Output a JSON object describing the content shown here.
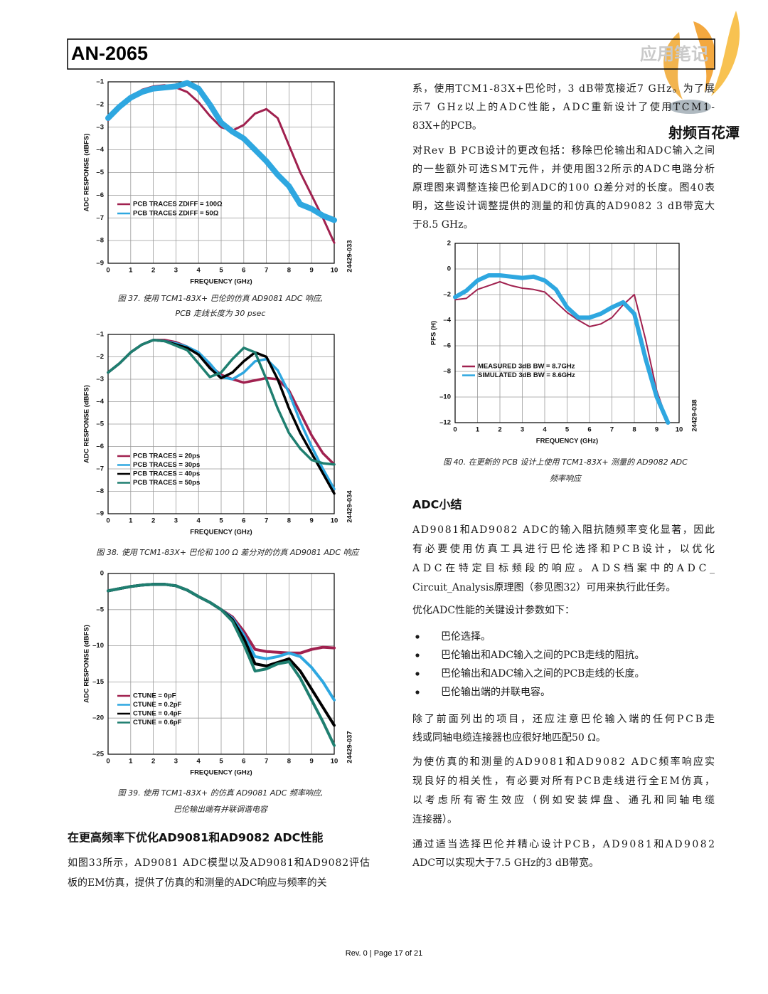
{
  "header": {
    "title": "AN-2065",
    "watermark": "应用笔记",
    "logo": "射频百花潭"
  },
  "chart_data": [
    {
      "type": "line",
      "xlabel": "FREQUENCY (GHz)",
      "ylabel": "ADC RESPONSE (dBFS)",
      "code": "24429-033",
      "caption": [
        "图 37.  使用 TCM1-83X+ 巴伦的仿真 AD9081 ADC 响应,",
        "PCB 走线长度为 30 psec"
      ],
      "x": [
        0,
        0.5,
        1,
        1.5,
        2,
        2.5,
        3,
        3.5,
        4,
        4.5,
        5,
        5.5,
        6,
        6.5,
        7,
        7.5,
        8,
        8.5,
        9,
        9.5,
        10
      ],
      "xlim": [
        0,
        10
      ],
      "xticks": [
        0,
        1,
        2,
        3,
        4,
        5,
        6,
        7,
        8,
        9,
        10
      ],
      "ylim": [
        -9,
        -1
      ],
      "yticks": [
        {
          "value": -1,
          "label": "–1"
        },
        {
          "value": -2,
          "label": "–2"
        },
        {
          "value": -3,
          "label": "–3"
        },
        {
          "value": -4,
          "label": "–4"
        },
        {
          "value": -5,
          "label": "–5"
        },
        {
          "value": -6,
          "label": "–6"
        },
        {
          "value": -7,
          "label": "–7"
        },
        {
          "value": -8,
          "label": "–8"
        },
        {
          "value": -9,
          "label": "–9"
        }
      ],
      "grid": true,
      "series": [
        {
          "name": "PCB TRACES ZDIFF = 100Ω",
          "color": "#a0214f",
          "width": 3,
          "values": [
            -2.7,
            -2.2,
            -1.7,
            -1.35,
            -1.2,
            -1.15,
            -1.25,
            -1.45,
            -1.9,
            -2.5,
            -3.0,
            -3.15,
            -2.9,
            -2.4,
            -2.2,
            -2.6,
            -3.8,
            -5.0,
            -6.0,
            -7.0,
            -8.1
          ]
        },
        {
          "name": "PCB TRACES ZDIFF = 50Ω",
          "color": "#2ea7e0",
          "width": 8,
          "values": [
            -2.6,
            -2.1,
            -1.7,
            -1.45,
            -1.3,
            -1.25,
            -1.2,
            -1.05,
            -1.3,
            -2.0,
            -2.8,
            -3.2,
            -3.5,
            -4.0,
            -4.5,
            -5.1,
            -5.6,
            -6.4,
            -6.6,
            -6.9,
            -7.1
          ]
        }
      ]
    },
    {
      "type": "line",
      "xlabel": "FREQUENCY (GHz)",
      "ylabel": "ADC RESPONSE (dBFS)",
      "code": "24429-034",
      "caption": [
        "图 38.  使用 TCM1-83X+ 巴伦和 100 Ω 差分对的仿真 AD9081 ADC 响应"
      ],
      "x": [
        0,
        0.5,
        1,
        1.5,
        2,
        2.5,
        3,
        3.5,
        4,
        4.5,
        5,
        5.5,
        6,
        6.5,
        7,
        7.5,
        8,
        8.5,
        9,
        9.5,
        10
      ],
      "xlim": [
        0,
        10
      ],
      "xticks": [
        0,
        1,
        2,
        3,
        4,
        5,
        6,
        7,
        8,
        9,
        10
      ],
      "ylim": [
        -9,
        -1
      ],
      "yticks": [
        {
          "value": -1,
          "label": "–1"
        },
        {
          "value": -2,
          "label": "–2"
        },
        {
          "value": -3,
          "label": "–3"
        },
        {
          "value": -4,
          "label": "–4"
        },
        {
          "value": -5,
          "label": "–5"
        },
        {
          "value": -6,
          "label": "–6"
        },
        {
          "value": -7,
          "label": "–7"
        },
        {
          "value": -8,
          "label": "–8"
        },
        {
          "value": -9,
          "label": "–9"
        }
      ],
      "grid": true,
      "series": [
        {
          "name": "PCB TRACES = 20ps",
          "color": "#a0214f",
          "width": 3.5,
          "values": [
            -2.7,
            -2.3,
            -1.8,
            -1.45,
            -1.25,
            -1.25,
            -1.35,
            -1.55,
            -1.9,
            -2.4,
            -2.8,
            -3.0,
            -3.15,
            -3.05,
            -2.95,
            -3.0,
            -3.5,
            -4.5,
            -5.5,
            -6.3,
            -6.8
          ]
        },
        {
          "name": "PCB TRACES = 30ps",
          "color": "#2ea7e0",
          "width": 3.5,
          "values": [
            -2.7,
            -2.3,
            -1.8,
            -1.45,
            -1.25,
            -1.3,
            -1.4,
            -1.55,
            -1.8,
            -2.3,
            -2.9,
            -3.0,
            -2.7,
            -2.2,
            -2.1,
            -2.6,
            -3.6,
            -4.9,
            -6.0,
            -7.0,
            -7.9
          ]
        },
        {
          "name": "PCB TRACES = 40ps",
          "color": "#000000",
          "width": 3.5,
          "values": [
            -2.7,
            -2.3,
            -1.8,
            -1.45,
            -1.25,
            -1.3,
            -1.45,
            -1.6,
            -1.9,
            -2.5,
            -2.95,
            -2.7,
            -2.2,
            -1.8,
            -2.0,
            -3.0,
            -4.3,
            -5.4,
            -6.3,
            -7.2,
            -8.1
          ]
        },
        {
          "name": "PCB TRACES = 50ps",
          "color": "#1f7f70",
          "width": 3.5,
          "values": [
            -2.7,
            -2.3,
            -1.8,
            -1.45,
            -1.25,
            -1.3,
            -1.5,
            -1.7,
            -2.3,
            -2.9,
            -2.7,
            -2.1,
            -1.6,
            -1.8,
            -3.0,
            -4.3,
            -5.4,
            -6.1,
            -6.6,
            -6.75,
            -6.8
          ]
        }
      ]
    },
    {
      "type": "line",
      "xlabel": "FREQUENCY (GHz)",
      "ylabel": "ADC RESPONSE (dBFS)",
      "code": "24429-037",
      "caption": [
        "图 39.  使用 TCM1-83X+ 的仿真 AD9081 ADC 频率响应,",
        "巴伦输出端有并联调谐电容"
      ],
      "x": [
        0,
        0.5,
        1,
        1.5,
        2,
        2.5,
        3,
        3.5,
        4,
        4.5,
        5,
        5.5,
        6,
        6.5,
        7,
        7.5,
        8,
        8.5,
        9,
        9.5,
        10
      ],
      "xlim": [
        0,
        10
      ],
      "xticks": [
        0,
        1,
        2,
        3,
        4,
        5,
        6,
        7,
        8,
        9,
        10
      ],
      "ylim": [
        -25,
        0
      ],
      "yticks": [
        0,
        {
          "value": -5,
          "label": "–5"
        },
        {
          "value": -10,
          "label": "–10"
        },
        {
          "value": -15,
          "label": "–15"
        },
        {
          "value": -20,
          "label": "–20"
        },
        {
          "value": -25,
          "label": "–25"
        }
      ],
      "grid": true,
      "series": [
        {
          "name": "CTUNE = 0pF",
          "color": "#a0214f",
          "width": 4,
          "values": [
            -2.4,
            -2.1,
            -1.8,
            -1.6,
            -1.5,
            -1.5,
            -1.7,
            -2.3,
            -3.2,
            -4.0,
            -5.0,
            -6.0,
            -8.0,
            -10.5,
            -10.8,
            -10.9,
            -11,
            -11,
            -10.5,
            -10.2,
            -10.3
          ]
        },
        {
          "name": "CTUNE = 0.2pF",
          "color": "#2ea7e0",
          "width": 4,
          "values": [
            -2.4,
            -2.1,
            -1.8,
            -1.6,
            -1.5,
            -1.5,
            -1.7,
            -2.3,
            -3.2,
            -4.0,
            -5.0,
            -6.2,
            -8.5,
            -11.5,
            -11.8,
            -11.5,
            -11,
            -11.5,
            -13,
            -15,
            -17.5
          ]
        },
        {
          "name": "CTUNE = 0.4pF",
          "color": "#000000",
          "width": 4,
          "values": [
            -2.4,
            -2.1,
            -1.8,
            -1.6,
            -1.5,
            -1.5,
            -1.7,
            -2.3,
            -3.2,
            -4.0,
            -5.0,
            -6.4,
            -9,
            -12.5,
            -12.8,
            -12.3,
            -11.8,
            -13.5,
            -16,
            -18.5,
            -21
          ]
        },
        {
          "name": "CTUNE = 0.6pF",
          "color": "#1f7f70",
          "width": 4,
          "values": [
            -2.4,
            -2.1,
            -1.8,
            -1.6,
            -1.5,
            -1.5,
            -1.7,
            -2.3,
            -3.2,
            -4.0,
            -5.0,
            -6.6,
            -9.8,
            -13.5,
            -13.2,
            -12.5,
            -12.2,
            -14.5,
            -17.5,
            -20.5,
            -23.8
          ]
        }
      ]
    },
    {
      "type": "line",
      "xlabel": "FREQUENCY (GHz)",
      "ylabel": "PFS (H)",
      "code": "24429-038",
      "caption": [
        "图 40.  在更新的 PCB 设计上使用 TCM1-83X+ 测量的 AD9082 ADC",
        "频率响应"
      ],
      "x": [
        0,
        0.5,
        1,
        1.5,
        2,
        2.5,
        3,
        3.5,
        4,
        4.5,
        5,
        5.5,
        6,
        6.5,
        7,
        7.5,
        8,
        8.5,
        9,
        9.5
      ],
      "xlim": [
        0,
        10
      ],
      "xticks": [
        0,
        1,
        2,
        3,
        4,
        5,
        6,
        7,
        8,
        9,
        10
      ],
      "ylim": [
        -12,
        2
      ],
      "yticks": [
        2,
        0,
        {
          "value": -2,
          "label": "–2"
        },
        {
          "value": -4,
          "label": "–4"
        },
        {
          "value": -6,
          "label": "–6"
        },
        {
          "value": -8,
          "label": "–8"
        },
        {
          "value": -10,
          "label": "–10"
        },
        {
          "value": -12,
          "label": "–12"
        }
      ],
      "grid": true,
      "series": [
        {
          "name": "MEASURED 3dB BW = 8.7GHz",
          "color": "#a0214f",
          "width": 2,
          "values": [
            -2.4,
            -2.3,
            -1.6,
            -1.3,
            -1.0,
            -1.3,
            -1.5,
            -1.6,
            -1.8,
            -2.6,
            -3.4,
            -4.0,
            -4.5,
            -4.3,
            -3.8,
            -2.8,
            -2.0,
            -5.5,
            -9.5,
            -12
          ]
        },
        {
          "name": "SIMULATED 3dB BW = 8.6GHz",
          "color": "#2ea7e0",
          "width": 6,
          "values": [
            -2.2,
            -1.7,
            -0.9,
            -0.5,
            -0.5,
            -0.6,
            -0.7,
            -0.6,
            -0.9,
            -1.6,
            -3.0,
            -3.8,
            -3.8,
            -3.5,
            -3.0,
            -2.6,
            -3.5,
            -7.0,
            -10.0,
            -12.0
          ]
        }
      ]
    }
  ],
  "left": {
    "heading": "在更高频率下优化AD9081和AD9082 ADC性能",
    "para": [
      "如图33所示，AD9081 ADC模型以及AD9081和AD9082评估",
      "板的EM仿真，提供了仿真的和测量的ADC响应与频率的关"
    ]
  },
  "right": {
    "para1": [
      "系，使用TCM1-83X+巴伦时，3 dB带宽接近7 GHz。为了展",
      "示7 GHz以上的ADC性能，ADC重新设计了使用TCM1-",
      "83X+的PCB。"
    ],
    "para2": [
      "对Rev B PCB设计的更改包括：移除巴伦输出和ADC输入之间",
      "的一些额外可选SMT元件，并使用图32所示的ADC电路分析",
      "原理图来调整连接巴伦到ADC的100 Ω差分对的长度。图40表",
      "明，这些设计调整提供的测量的和仿真的AD9082 3 dB带宽大",
      "于8.5 GHz。"
    ],
    "heading": "ADC小结",
    "para3": [
      "AD9081和AD9082 ADC的输入阻抗随频率变化显著，因此",
      "有必要使用仿真工具进行巴伦选择和PCB设计，以优化",
      "ADC在特定目标频段的响应。ADS档案中的ADC_",
      "Circuit_Analysis原理图（参见图32）可用来执行此任务。"
    ],
    "para4": [
      "优化ADC性能的关键设计参数如下："
    ],
    "bullets": [
      "巴伦选择。",
      "巴伦输出和ADC输入之间的PCB走线的阻抗。",
      "巴伦输出和ADC输入之间的PCB走线的长度。",
      "巴伦输出端的并联电容。"
    ],
    "para5": [
      "除了前面列出的项目，还应注意巴伦输入端的任何PCB走",
      "线或同轴电缆连接器也应很好地匹配50 Ω。"
    ],
    "para6": [
      "为使仿真的和测量的AD9081和AD9082 ADC频率响应实",
      "现良好的相关性，有必要对所有PCB走线进行全EM仿真，",
      "以考虑所有寄生效应（例如安装焊盘、通孔和同轴电缆",
      "连接器）。"
    ],
    "para7": [
      "通过适当选择巴伦并精心设计PCB，AD9081和AD9082",
      "ADC可以实现大于7.5 GHz的3 dB带宽。"
    ]
  },
  "footer": "Rev. 0 | Page 17 of 21"
}
